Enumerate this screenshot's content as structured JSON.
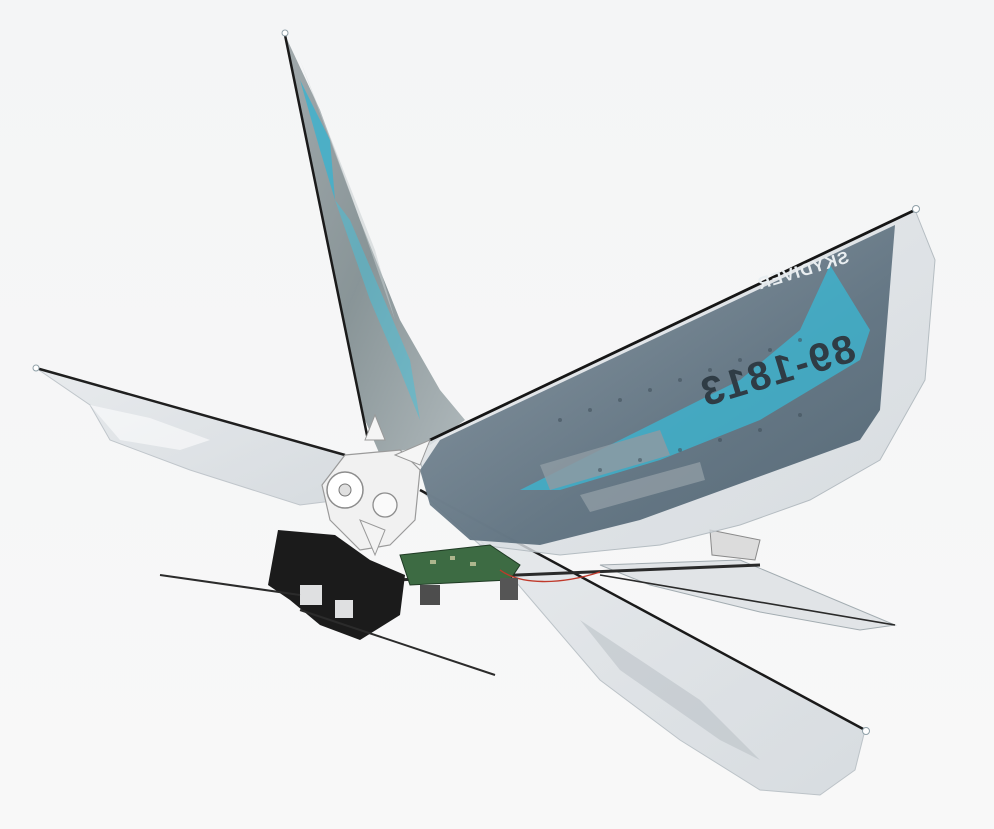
{
  "photo": {
    "subject": "flapping-wing micro air vehicle",
    "background_color": "#f5f6f7",
    "colors": {
      "wing_film": "#c9d0d6",
      "wing_print_grey": "#6f7f8c",
      "wing_accent_cyan": "#3ab8d4",
      "frame_black": "#1b1b1b",
      "gearbox_white": "#f2f2f2",
      "circuit_green": "#3d6b43"
    }
  },
  "wing_print": {
    "brand": "SKYDIVER",
    "serial": "89-1813"
  }
}
